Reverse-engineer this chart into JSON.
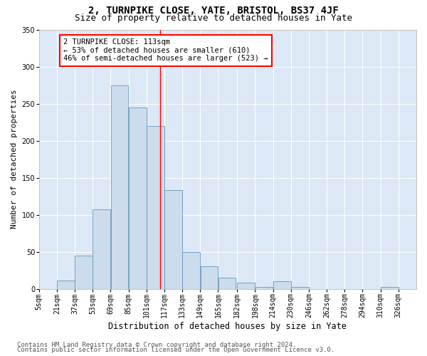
{
  "title": "2, TURNPIKE CLOSE, YATE, BRISTOL, BS37 4JF",
  "subtitle": "Size of property relative to detached houses in Yate",
  "xlabel": "Distribution of detached houses by size in Yate",
  "ylabel": "Number of detached properties",
  "categories": [
    "5sqm",
    "21sqm",
    "37sqm",
    "53sqm",
    "69sqm",
    "85sqm",
    "101sqm",
    "117sqm",
    "133sqm",
    "149sqm",
    "165sqm",
    "182sqm",
    "198sqm",
    "214sqm",
    "230sqm",
    "246sqm",
    "262sqm",
    "278sqm",
    "294sqm",
    "310sqm",
    "326sqm"
  ],
  "values": [
    0,
    11,
    45,
    107,
    275,
    245,
    220,
    133,
    50,
    30,
    15,
    8,
    3,
    10,
    3,
    0,
    0,
    0,
    0,
    3,
    0
  ],
  "bar_color": "#ccdcec",
  "bar_edge_color": "#6699bb",
  "property_line_x": 113,
  "bin_width": 16,
  "bin_starts": [
    5,
    21,
    37,
    53,
    69,
    85,
    101,
    117,
    133,
    149,
    165,
    182,
    198,
    214,
    230,
    246,
    262,
    278,
    294,
    310,
    326
  ],
  "annotation_text": "2 TURNPIKE CLOSE: 113sqm\n← 53% of detached houses are smaller (610)\n46% of semi-detached houses are larger (523) →",
  "ylim": [
    0,
    350
  ],
  "yticks": [
    0,
    50,
    100,
    150,
    200,
    250,
    300,
    350
  ],
  "footer1": "Contains HM Land Registry data © Crown copyright and database right 2024.",
  "footer2": "Contains public sector information licensed under the Open Government Licence v3.0.",
  "bg_color": "#dce8f5",
  "title_fontsize": 10,
  "subtitle_fontsize": 9,
  "xlabel_fontsize": 8.5,
  "ylabel_fontsize": 8,
  "tick_fontsize": 7,
  "annot_fontsize": 7.5,
  "footer_fontsize": 6.5
}
